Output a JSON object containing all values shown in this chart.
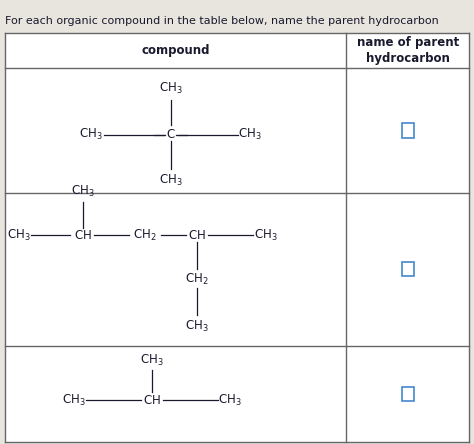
{
  "title": "For each organic compound in the table below, name the parent hydrocarbon",
  "col1_header": "compound",
  "col2_header": "name of parent\nhydrocarbon",
  "bg_color": "#e8e4de",
  "text_color": "#1a1a2e",
  "border_color": "#666666",
  "figsize": [
    4.74,
    4.44
  ],
  "dpi": 100,
  "title_fontsize": 8.0,
  "header_fontsize": 8.5,
  "chem_fontsize": 8.5
}
